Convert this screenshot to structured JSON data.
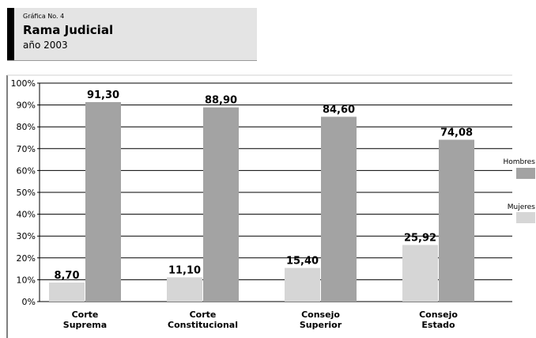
{
  "header": {
    "figure_number": "Gráfica No. 4",
    "title": "Rama Judicial",
    "subtitle": "año 2003"
  },
  "chart_data": {
    "type": "bar",
    "categories": [
      "Corte Suprema",
      "Corte Constitucional",
      "Consejo Superior",
      "Consejo Estado"
    ],
    "category_lines": [
      [
        "Corte",
        "Suprema"
      ],
      [
        "Corte",
        "Constitucional"
      ],
      [
        "Consejo",
        "Superior"
      ],
      [
        "Consejo",
        "Estado"
      ]
    ],
    "series": [
      {
        "name": "Mujeres",
        "values": [
          8.7,
          11.1,
          15.4,
          25.92
        ],
        "labels": [
          "8,70",
          "11,10",
          "15,40",
          "25,92"
        ],
        "color": "#d6d6d6"
      },
      {
        "name": "Hombres",
        "values": [
          91.3,
          88.9,
          84.6,
          74.08
        ],
        "labels": [
          "91,30",
          "88,90",
          "84,60",
          "74,08"
        ],
        "color": "#a3a3a3"
      }
    ],
    "yticks": [
      "0%",
      "10%",
      "20%",
      "30%",
      "40%",
      "50%",
      "60%",
      "70%",
      "80%",
      "90%",
      "100%"
    ],
    "ylim": [
      0,
      100
    ],
    "grid": true,
    "legend": {
      "position": "right",
      "order": [
        "Hombres",
        "Mujeres"
      ]
    }
  }
}
